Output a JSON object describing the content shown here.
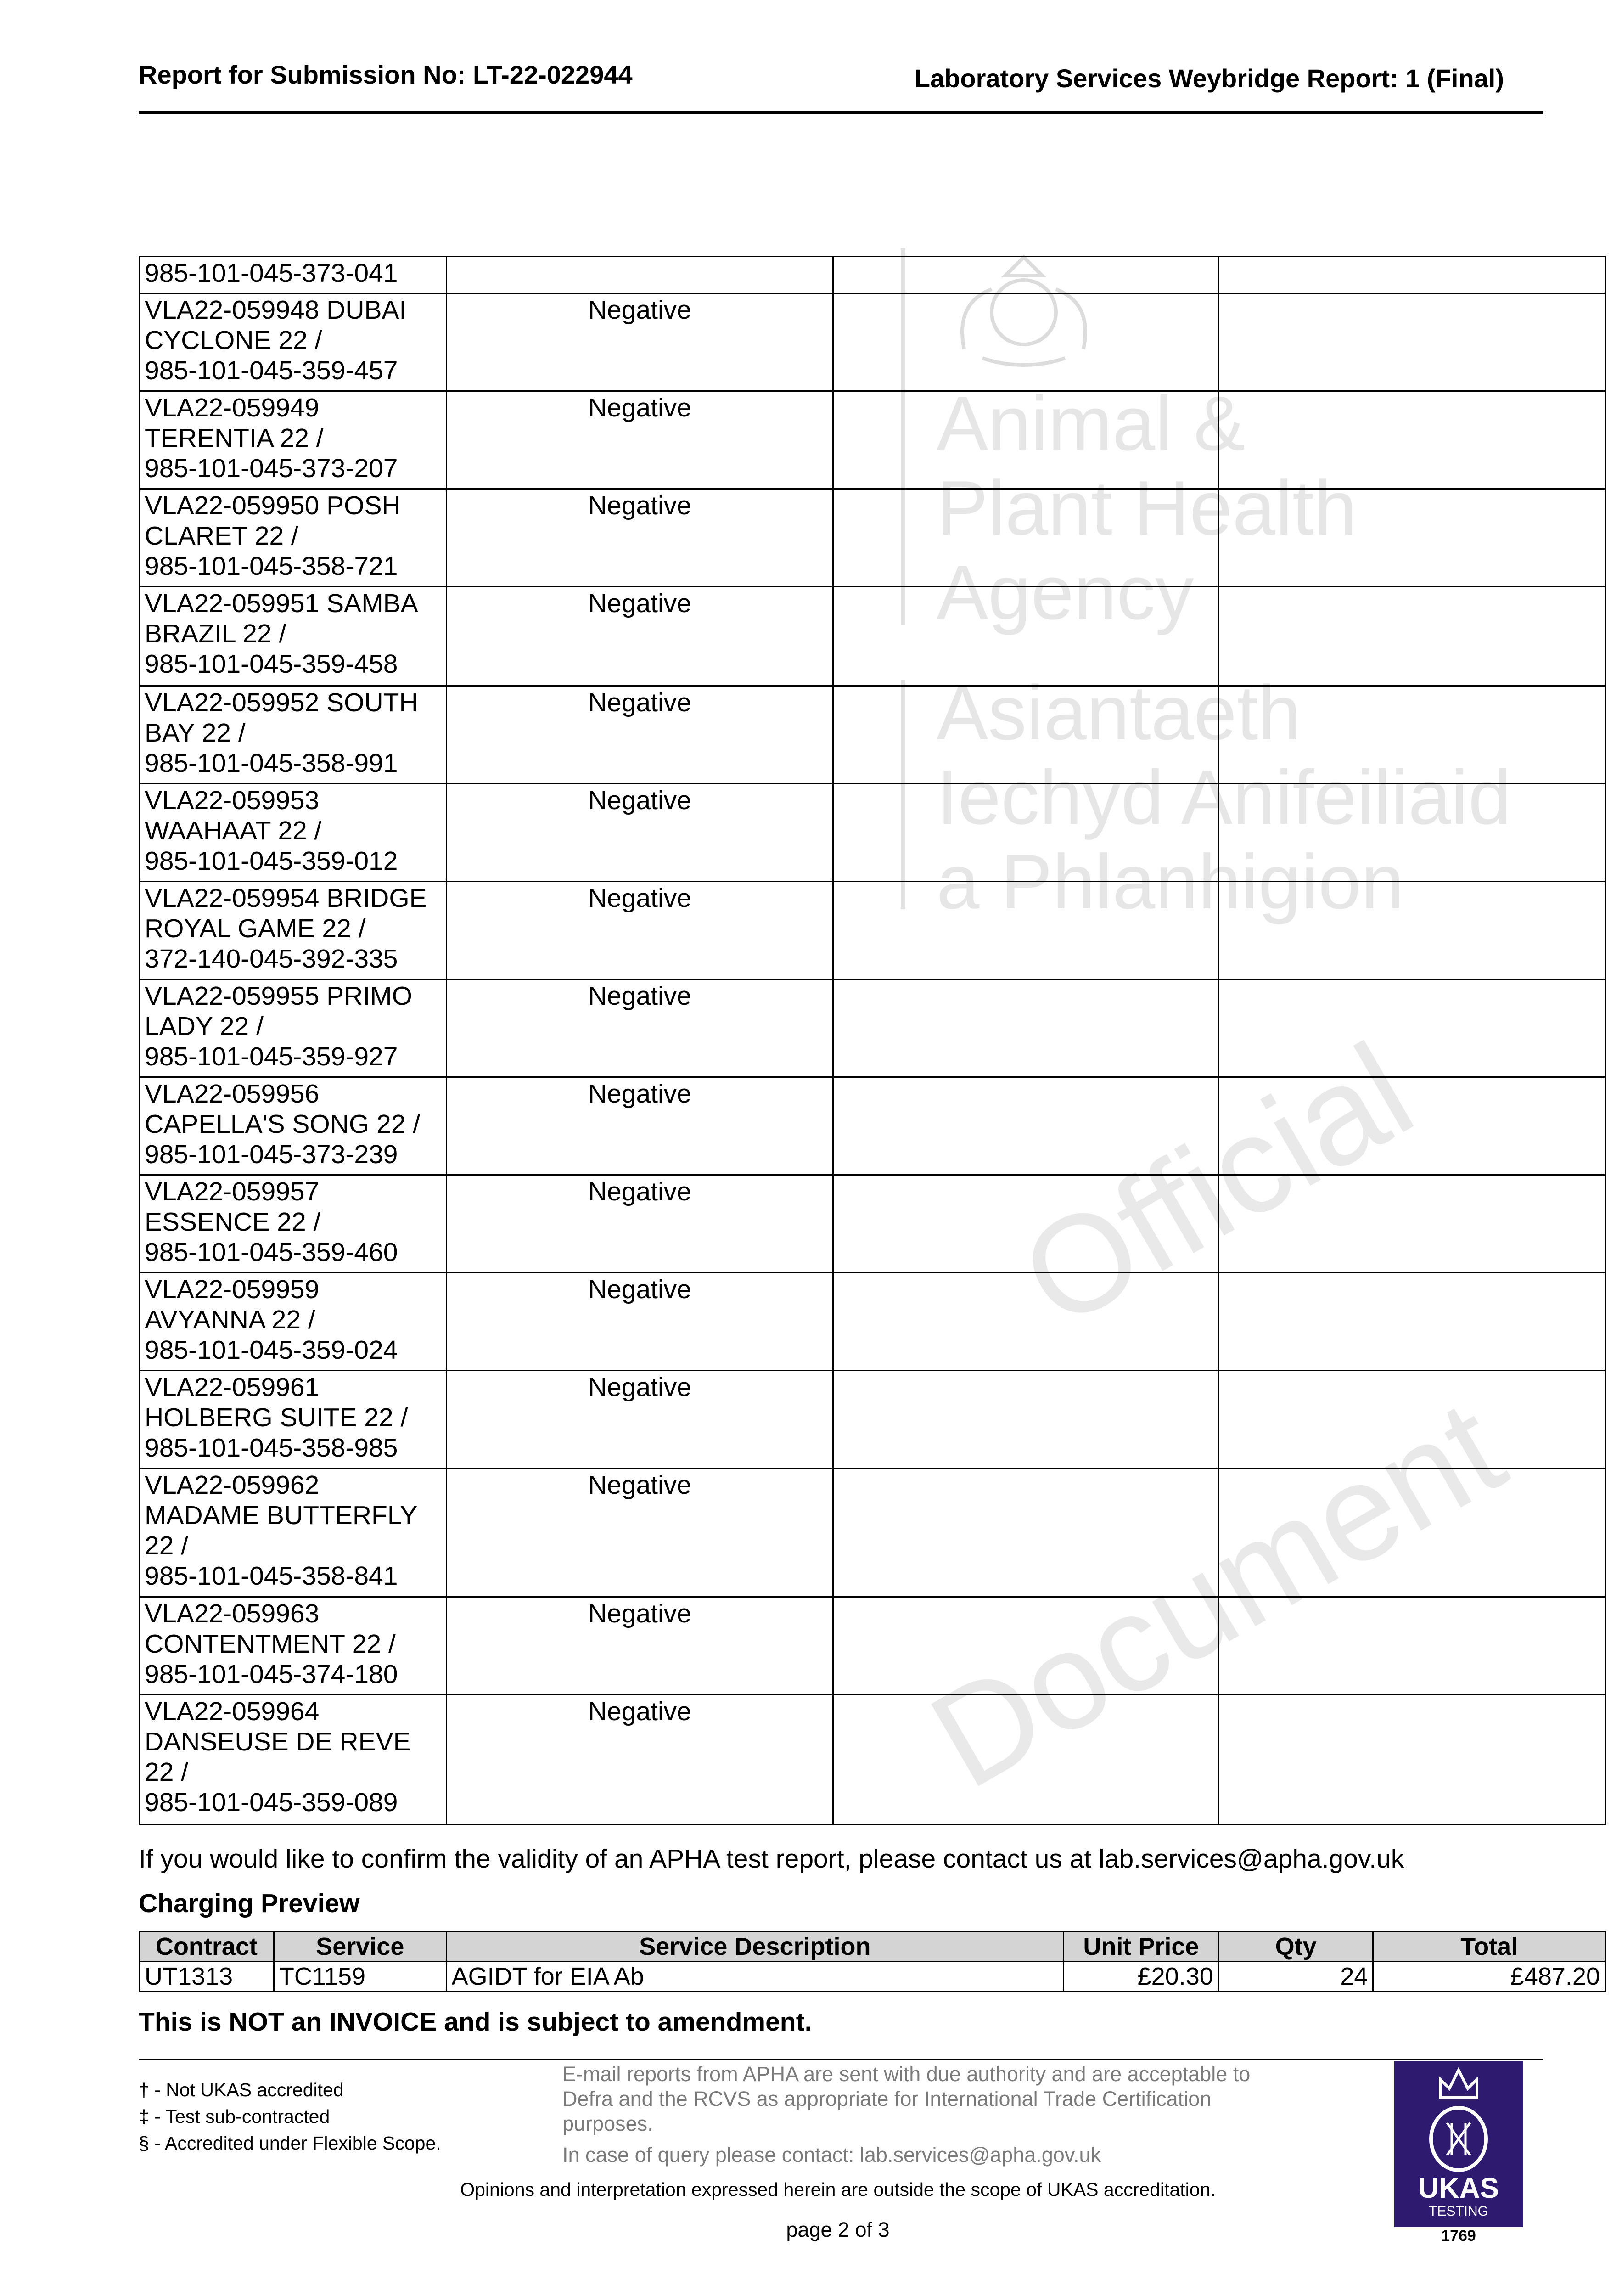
{
  "header": {
    "left": "Report for Submission No: LT-22-022944",
    "right": "Laboratory Services Weybridge Report: 1 (Final)"
  },
  "watermark": {
    "agency_en": [
      "Animal &",
      "Plant Health",
      "Agency"
    ],
    "agency_cy": [
      "Asiantaeth",
      "Iechyd Anifeiliaid",
      "a Phlanhigion"
    ],
    "diagonal": [
      "Official",
      "Document"
    ]
  },
  "results": {
    "rows": [
      {
        "id": "985-101-045-373-041",
        "result": ""
      },
      {
        "id": "VLA22-059948 DUBAI\nCYCLONE 22 /\n985-101-045-359-457",
        "result": "Negative"
      },
      {
        "id": "VLA22-059949\nTERENTIA 22 /\n985-101-045-373-207",
        "result": "Negative"
      },
      {
        "id": "VLA22-059950 POSH\nCLARET 22 /\n985-101-045-358-721",
        "result": "Negative"
      },
      {
        "id": "VLA22-059951 SAMBA\nBRAZIL 22 /\n985-101-045-359-458",
        "result": "Negative"
      },
      {
        "id": "VLA22-059952 SOUTH\nBAY 22 /\n985-101-045-358-991",
        "result": "Negative"
      },
      {
        "id": "VLA22-059953\nWAAHAAT 22 /\n985-101-045-359-012",
        "result": "Negative"
      },
      {
        "id": "VLA22-059954 BRIDGE\nROYAL GAME 22 /\n372-140-045-392-335",
        "result": "Negative"
      },
      {
        "id": "VLA22-059955 PRIMO\nLADY 22 /\n985-101-045-359-927",
        "result": "Negative"
      },
      {
        "id": "VLA22-059956\nCAPELLA'S SONG 22 /\n985-101-045-373-239",
        "result": "Negative"
      },
      {
        "id": "VLA22-059957\nESSENCE 22 /\n985-101-045-359-460",
        "result": "Negative"
      },
      {
        "id": "VLA22-059959\nAVYANNA 22 /\n985-101-045-359-024",
        "result": "Negative"
      },
      {
        "id": "VLA22-059961\nHOLBERG SUITE 22 /\n985-101-045-358-985",
        "result": "Negative"
      },
      {
        "id": "VLA22-059962\nMADAME BUTTERFLY\n22 /\n985-101-045-358-841",
        "result": "Negative"
      },
      {
        "id": "VLA22-059963\nCONTENTMENT 22 /\n985-101-045-374-180",
        "result": "Negative"
      },
      {
        "id": "VLA22-059964\nDANSEUSE DE REVE\n22 /\n985-101-045-359-089",
        "result": "Negative"
      }
    ]
  },
  "confirm_text": "If you would like to confirm the validity of an APHA test report, please contact us at lab.services@apha.gov.uk",
  "charging": {
    "title": "Charging Preview",
    "columns": [
      "Contract",
      "Service",
      "Service Description",
      "Unit Price",
      "Qty",
      "Total"
    ],
    "rows": [
      [
        "UT1313",
        "TC1159",
        "AGIDT for EIA Ab",
        "£20.30",
        "24",
        "£487.20"
      ]
    ],
    "notice": "This is NOT an INVOICE and is subject to amendment."
  },
  "footer": {
    "notes": [
      "† - Not UKAS accredited",
      "‡ - Test sub-contracted",
      "§ - Accredited under Flexible Scope."
    ],
    "email_text": "E-mail reports from APHA are sent with due authority and are acceptable to Defra and the RCVS as appropriate for International Trade Certification purposes.",
    "query_text": "In case of query please contact: lab.services@apha.gov.uk",
    "opinions": "Opinions and interpretation expressed herein are outside the scope of UKAS accreditation.",
    "page": "page 2 of 3",
    "ukas": {
      "name": "UKAS",
      "sub": "TESTING",
      "number": "1769",
      "color": "#2e1a6e"
    }
  }
}
